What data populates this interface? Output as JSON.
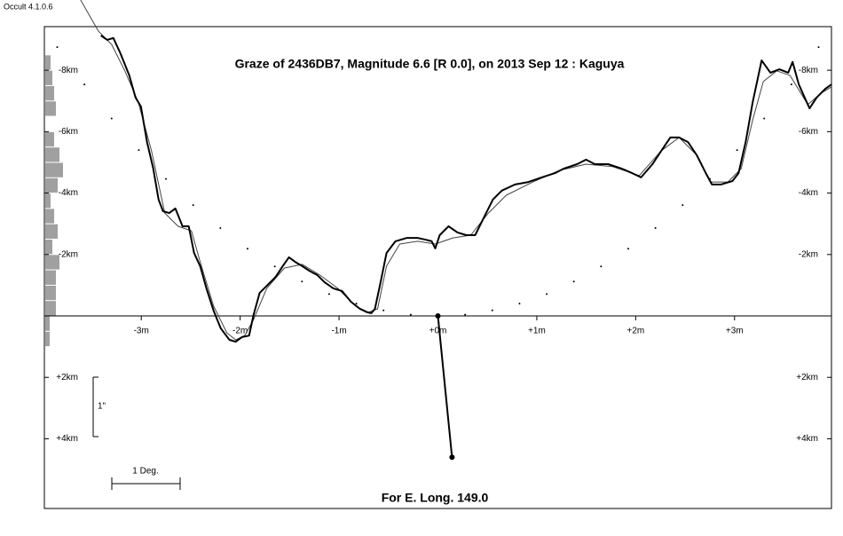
{
  "chart_data": {
    "type": "line",
    "software": "Occult 4.1.0.6",
    "title": "Graze of  2436DB7,  Magnitude 6.6 [R 0.0],  on 2013 Sep 12  :  Kaguya",
    "footer": "For E. Long. 149.0",
    "scale_labels": [
      "1\"",
      "1 Deg."
    ],
    "xlim": [
      -3.98,
      3.98
    ],
    "ylim": [
      6.27,
      -9.42
    ],
    "xticks": [
      {
        "value": -3,
        "label": "-3m"
      },
      {
        "value": -2,
        "label": "-2m"
      },
      {
        "value": -1,
        "label": "-1m"
      },
      {
        "value": 0,
        "label": "+0m"
      },
      {
        "value": 1,
        "label": "+1m"
      },
      {
        "value": 2,
        "label": "+2m"
      },
      {
        "value": 3,
        "label": "+3m"
      }
    ],
    "yticks": [
      {
        "value": -8,
        "label": "-8km"
      },
      {
        "value": -6,
        "label": "-6km"
      },
      {
        "value": -4,
        "label": "-4km"
      },
      {
        "value": -2,
        "label": "-2km"
      },
      {
        "value": 2,
        "label": "+2km"
      },
      {
        "value": 4,
        "label": "+4km"
      }
    ],
    "series": [
      {
        "style": "dots",
        "color": "#000000",
        "x": [
          -3.85,
          -3.575,
          -3.3,
          -3.025,
          -2.75,
          -2.475,
          -2.2,
          -1.925,
          -1.65,
          -1.375,
          -1.1,
          -0.825,
          -0.55,
          -0.275,
          0,
          0.275,
          0.55,
          0.825,
          1.1,
          1.375,
          1.65,
          1.925,
          2.2,
          2.475,
          2.75,
          3.025,
          3.3,
          3.575,
          3.85
        ],
        "values": [
          -8.75,
          -7.54,
          -6.43,
          -5.4,
          -4.46,
          -3.61,
          -2.86,
          -2.19,
          -1.61,
          -1.12,
          -0.71,
          -0.4,
          -0.18,
          -0.04,
          0,
          -0.04,
          -0.18,
          -0.4,
          -0.71,
          -1.12,
          -1.61,
          -2.19,
          -2.86,
          -3.61,
          -4.46,
          -5.4,
          -6.43,
          -7.54,
          -8.75
        ]
      },
      {
        "style": "line",
        "color": "#444444",
        "width": 1,
        "x": [
          -3.614,
          -3.435,
          -3.3,
          -3.166,
          -3.031,
          -2.897,
          -2.762,
          -2.628,
          -2.493,
          -2.404,
          -2.269,
          -2.135,
          -2.045,
          -1.955,
          -1.865,
          -1.731,
          -1.552,
          -1.372,
          -1.193,
          -1.013,
          -0.834,
          -0.7,
          -0.61,
          -0.52,
          -0.386,
          -0.206,
          -0.027,
          0.152,
          0.332,
          0.511,
          0.691,
          0.96,
          1.229,
          1.498,
          1.767,
          2.036,
          2.26,
          2.439,
          2.619,
          2.753,
          2.933,
          3.067,
          3.184,
          3.291,
          3.426,
          3.561,
          3.74,
          3.874,
          3.982
        ],
        "values": [
          -10.29,
          -9.28,
          -8.84,
          -7.98,
          -6.97,
          -5.38,
          -3.35,
          -2.92,
          -2.77,
          -1.76,
          -0.32,
          0.55,
          0.78,
          0.64,
          0.12,
          -0.9,
          -1.56,
          -1.68,
          -1.33,
          -0.9,
          -0.32,
          -0.12,
          -0.23,
          -1.62,
          -2.34,
          -2.43,
          -2.34,
          -2.54,
          -2.63,
          -3.35,
          -3.93,
          -4.36,
          -4.74,
          -4.94,
          -4.86,
          -4.57,
          -5.38,
          -5.81,
          -5.23,
          -4.36,
          -4.36,
          -4.8,
          -6.39,
          -7.63,
          -7.98,
          -7.83,
          -6.88,
          -7.25,
          -7.46
        ]
      },
      {
        "style": "line",
        "color": "#000000",
        "width": 2,
        "x": [
          -3.408,
          -3.345,
          -3.283,
          -3.211,
          -3.121,
          -3.058,
          -3.004,
          -2.942,
          -2.879,
          -2.825,
          -2.78,
          -2.717,
          -2.655,
          -2.583,
          -2.52,
          -2.466,
          -2.404,
          -2.341,
          -2.269,
          -2.197,
          -2.108,
          -2.045,
          -1.982,
          -1.91,
          -1.865,
          -1.803,
          -1.731,
          -1.641,
          -1.57,
          -1.507,
          -1.444,
          -1.372,
          -1.3,
          -1.22,
          -1.148,
          -1.058,
          -0.969,
          -0.879,
          -0.789,
          -0.717,
          -0.673,
          -0.637,
          -0.583,
          -0.52,
          -0.43,
          -0.314,
          -0.206,
          -0.135,
          -0.063,
          -0.027,
          0.018,
          0.108,
          0.197,
          0.287,
          0.377,
          0.466,
          0.556,
          0.646,
          0.78,
          0.915,
          1.049,
          1.184,
          1.274,
          1.408,
          1.498,
          1.587,
          1.722,
          1.857,
          1.964,
          2.054,
          2.17,
          2.26,
          2.35,
          2.439,
          2.529,
          2.619,
          2.709,
          2.771,
          2.861,
          2.978,
          3.04,
          3.112,
          3.184,
          3.274,
          3.363,
          3.453,
          3.543,
          3.587,
          3.65,
          3.758,
          3.83,
          3.919,
          3.982
        ],
        "values": [
          -9.13,
          -8.99,
          -9.05,
          -8.55,
          -7.83,
          -7.11,
          -6.82,
          -5.66,
          -4.8,
          -3.79,
          -3.41,
          -3.35,
          -3.5,
          -2.92,
          -2.92,
          -2.05,
          -1.62,
          -0.9,
          -0.17,
          0.4,
          0.78,
          0.84,
          0.69,
          0.64,
          -0.03,
          -0.75,
          -0.98,
          -1.27,
          -1.62,
          -1.91,
          -1.76,
          -1.62,
          -1.47,
          -1.33,
          -1.1,
          -0.9,
          -0.81,
          -0.46,
          -0.23,
          -0.12,
          -0.09,
          -0.23,
          -1.04,
          -2.05,
          -2.43,
          -2.54,
          -2.54,
          -2.49,
          -2.43,
          -2.2,
          -2.63,
          -2.92,
          -2.72,
          -2.63,
          -2.63,
          -3.21,
          -3.79,
          -4.08,
          -4.28,
          -4.36,
          -4.51,
          -4.65,
          -4.8,
          -4.94,
          -5.09,
          -4.94,
          -4.94,
          -4.8,
          -4.65,
          -4.51,
          -4.94,
          -5.38,
          -5.81,
          -5.81,
          -5.66,
          -5.23,
          -4.65,
          -4.28,
          -4.28,
          -4.39,
          -4.65,
          -5.66,
          -6.97,
          -8.32,
          -7.92,
          -8.03,
          -7.92,
          -8.27,
          -7.54,
          -6.76,
          -7.11,
          -7.4,
          -7.54
        ]
      },
      {
        "style": "pointer",
        "color": "#000000",
        "width": 2,
        "x": [
          0,
          0.143
        ],
        "values": [
          0,
          4.6
        ]
      }
    ],
    "side_histogram": {
      "color": "#a0a0a0",
      "bins": [
        -8.5,
        -8,
        -7.5,
        -7,
        -6.5,
        -6,
        -5.5,
        -5,
        -4.5,
        -4,
        -3.5,
        -3,
        -2.5,
        -2,
        -1.5,
        -1,
        -0.5,
        0,
        0.5,
        1
      ],
      "counts": [
        6,
        8,
        10,
        12,
        0,
        10,
        16,
        20,
        14,
        6,
        10,
        14,
        8,
        16,
        12,
        12,
        12,
        5,
        5
      ]
    }
  }
}
